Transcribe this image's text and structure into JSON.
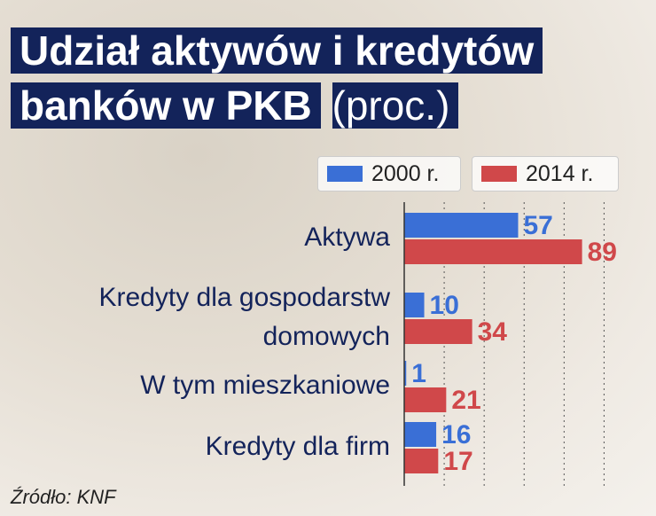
{
  "chart_data": {
    "type": "hbar",
    "title": "Udział aktywów i kredytów banków w PKB",
    "subtitle": "(proc.)",
    "categories": [
      "Aktywa",
      "Kredyty dla gospodarstw domowych",
      "W tym mieszkaniowe",
      "Kredyty dla firm"
    ],
    "series": [
      {
        "name": "2000 r.",
        "color": "#3a6fd6",
        "values": [
          57,
          10,
          1,
          16
        ]
      },
      {
        "name": "2014 r.",
        "color": "#d0484a",
        "values": [
          89,
          34,
          21,
          17
        ]
      }
    ],
    "xlim": [
      0,
      126
    ],
    "xgrid": [
      20,
      40,
      60,
      80,
      100
    ],
    "source": "Źródło: KNF"
  }
}
